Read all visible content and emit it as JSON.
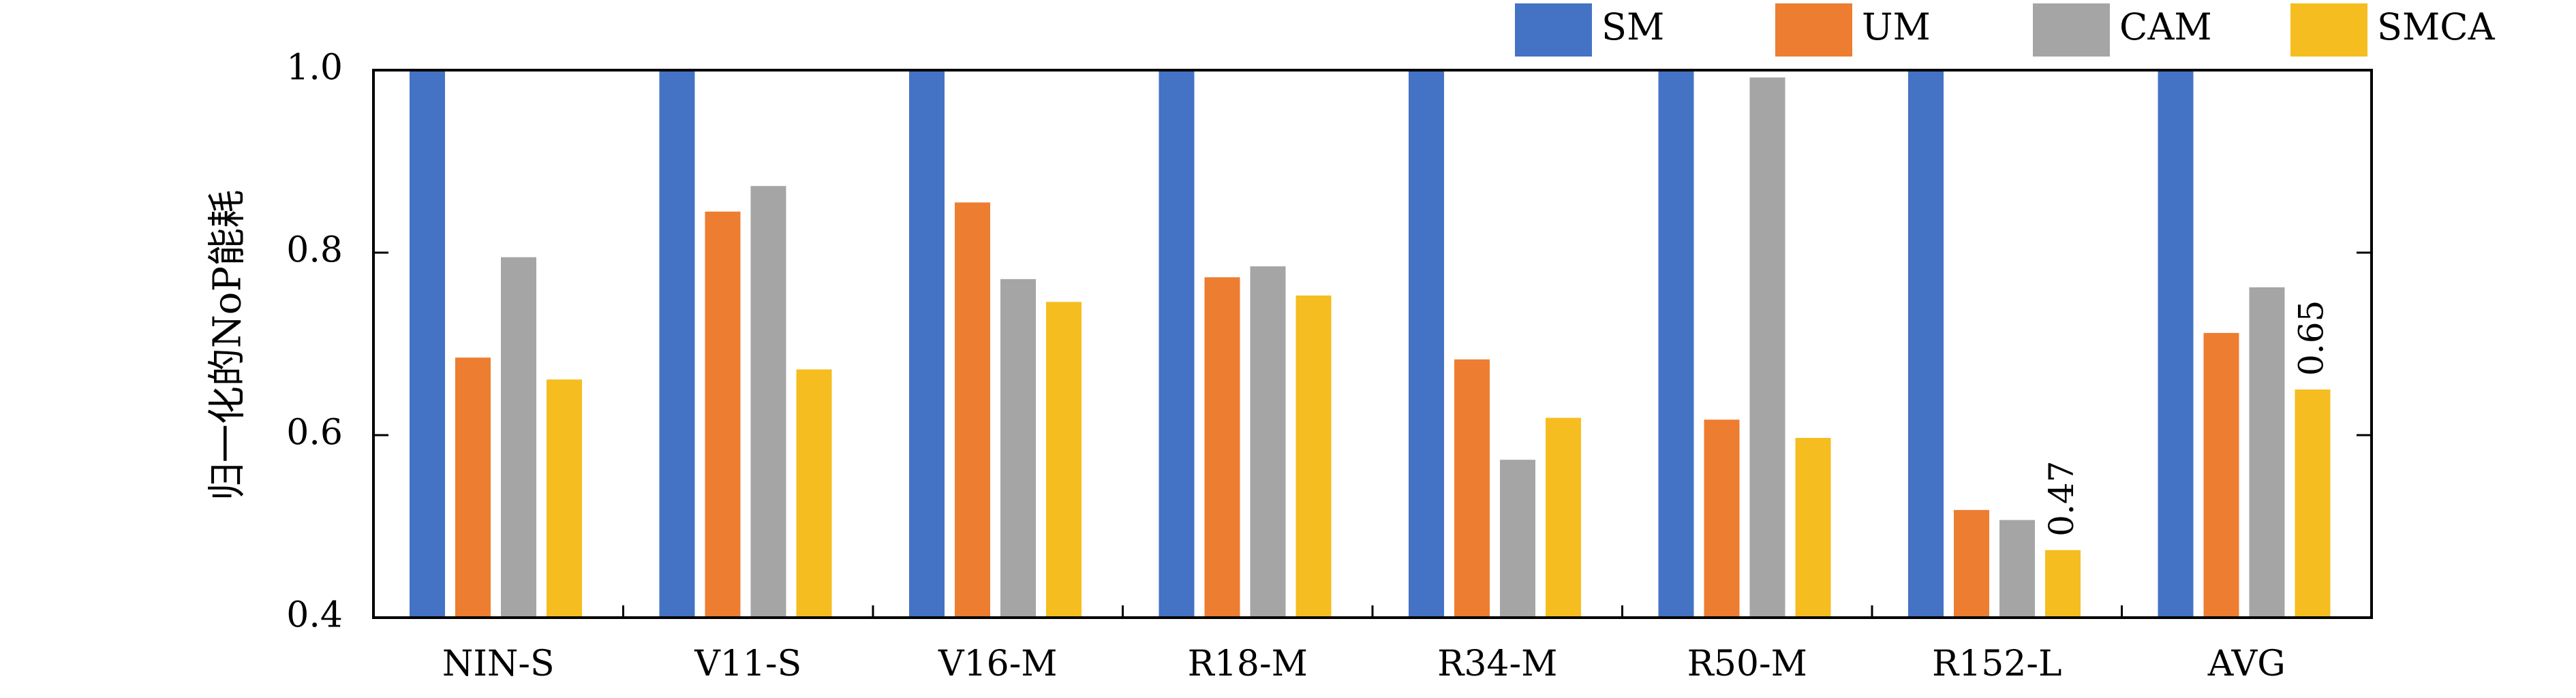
{
  "chart_data": {
    "type": "bar",
    "title": "",
    "xlabel": "",
    "ylabel": "归一化的NoP能耗",
    "ylim": [
      0.4,
      1.0
    ],
    "yticks": [
      0.4,
      0.6,
      0.8,
      1.0
    ],
    "categories": [
      "NIN-S",
      "V11-S",
      "V16-M",
      "R18-M",
      "R34-M",
      "R50-M",
      "R152-L",
      "AVG"
    ],
    "series": [
      {
        "name": "SM",
        "color": "#4472c4",
        "values": [
          1.0,
          1.0,
          1.0,
          1.0,
          1.0,
          1.0,
          1.0,
          1.0
        ]
      },
      {
        "name": "UM",
        "color": "#ed7d31",
        "values": [
          0.685,
          0.845,
          0.855,
          0.773,
          0.683,
          0.617,
          0.518,
          0.712
        ]
      },
      {
        "name": "CAM",
        "color": "#a5a5a5",
        "values": [
          0.795,
          0.873,
          0.771,
          0.785,
          0.573,
          0.992,
          0.507,
          0.762
        ]
      },
      {
        "name": "SMCA",
        "color": "#f5bd1f",
        "values": [
          0.661,
          0.672,
          0.746,
          0.753,
          0.619,
          0.597,
          0.474,
          0.65
        ]
      }
    ],
    "annotations": [
      {
        "category": "R152-L",
        "series": "SMCA",
        "text": "0.47"
      },
      {
        "category": "AVG",
        "series": "SMCA",
        "text": "0.65"
      }
    ],
    "legend": "top-right",
    "grid": false
  }
}
